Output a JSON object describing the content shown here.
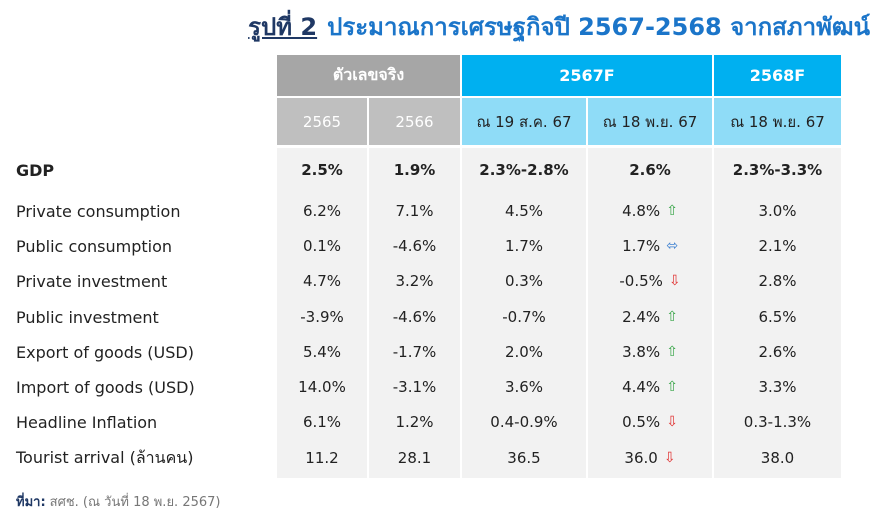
{
  "title": {
    "figure": "รูปที่ 2",
    "text": "ประมาณการเศรษฐกิจปี 2567-2568 จากสภาพัฒน์"
  },
  "table": {
    "groups": [
      "ตัวเลขจริง",
      "2567F",
      "2568F"
    ],
    "subheaders": [
      "2565",
      "2566",
      "ณ 19 ส.ค. 67",
      "ณ 18 พ.ย. 67",
      "ณ 18 พ.ย. 67"
    ],
    "rows": [
      {
        "label": "GDP",
        "cells": [
          "2.5%",
          "1.9%",
          "2.3%-2.8%",
          "2.6%",
          "2.3%-3.3%"
        ]
      },
      {
        "label": "Private consumption",
        "cells": [
          "6.2%",
          "7.1%",
          "4.5%",
          "4.8%",
          "3.0%"
        ],
        "arrow": "⇧",
        "arrow_color": "#3aa64a"
      },
      {
        "label": "Public consumption",
        "cells": [
          "0.1%",
          "-4.6%",
          "1.7%",
          "1.7%",
          "2.1%"
        ],
        "arrow": "⬄",
        "arrow_color": "#3b7fd0"
      },
      {
        "label": "Private investment",
        "cells": [
          "4.7%",
          "3.2%",
          "0.3%",
          "-0.5%",
          "2.8%"
        ],
        "arrow": "⇩",
        "arrow_color": "#e03030"
      },
      {
        "label": "Public investment",
        "cells": [
          "-3.9%",
          "-4.6%",
          "-0.7%",
          "2.4%",
          "6.5%"
        ],
        "arrow": "⇧",
        "arrow_color": "#3aa64a"
      },
      {
        "label": "Export of goods (USD)",
        "cells": [
          "5.4%",
          "-1.7%",
          "2.0%",
          "3.8%",
          "2.6%"
        ],
        "arrow": "⇧",
        "arrow_color": "#3aa64a"
      },
      {
        "label": "Import of goods (USD)",
        "cells": [
          "14.0%",
          "-3.1%",
          "3.6%",
          "4.4%",
          "3.3%"
        ],
        "arrow": "⇧",
        "arrow_color": "#3aa64a"
      },
      {
        "label": "Headline Inflation",
        "cells": [
          "6.1%",
          "1.2%",
          "0.4-0.9%",
          "0.5%",
          "0.3-1.3%"
        ],
        "arrow": "⇩",
        "arrow_color": "#e03030"
      },
      {
        "label": "Tourist arrival (ล้านคน)",
        "cells": [
          "11.2",
          "28.1",
          "36.5",
          "36.0",
          "38.0"
        ],
        "arrow": "⇩",
        "arrow_color": "#e03030"
      }
    ]
  },
  "source": {
    "label": "ที่มา:",
    "text": "สศช. (ณ วันที่ 18 พ.ย. 2567)"
  }
}
